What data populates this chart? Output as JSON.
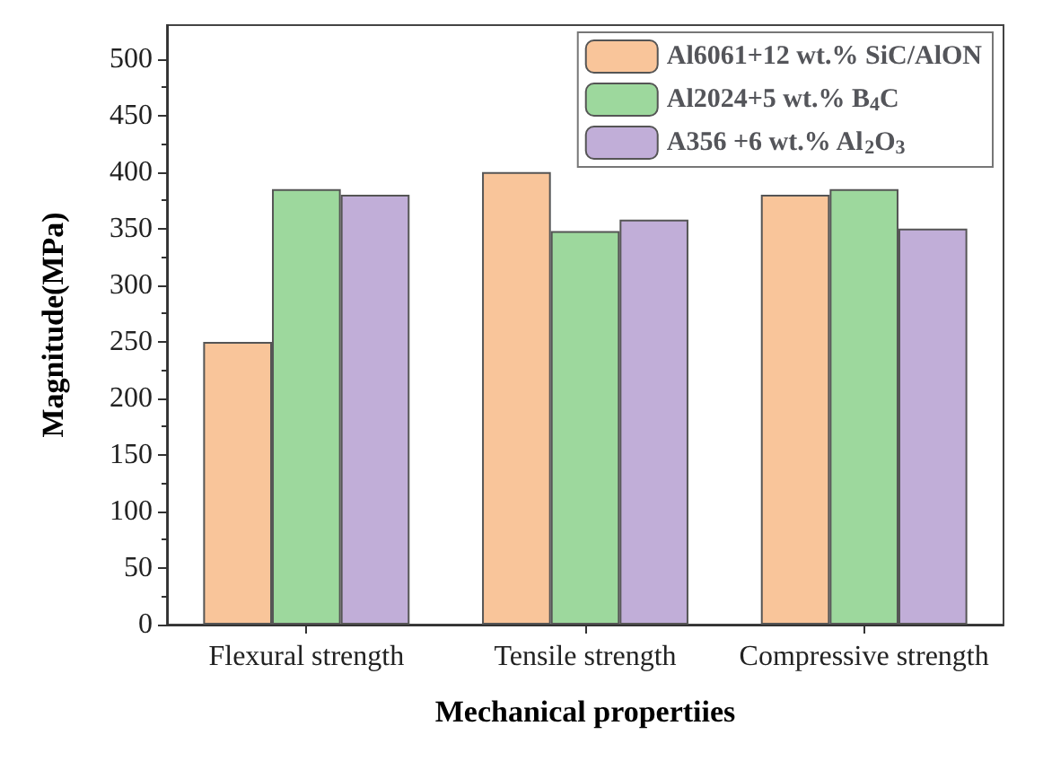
{
  "chart_data": {
    "type": "bar",
    "xlabel": "Mechanical propertiies",
    "ylabel": "Magnitude(MPa)",
    "categories": [
      "Flexural strength",
      "Tensile strength",
      "Compressive strength"
    ],
    "series": [
      {
        "name": "Al6061+12 wt.% SiC/AlON",
        "color": "#f9c59a",
        "values": [
          250,
          400,
          380
        ]
      },
      {
        "name": "Al2024+5 wt.% B$_{4}$C",
        "color": "#9dd89d",
        "values": [
          385,
          348,
          385
        ]
      },
      {
        "name": "A356 +6 wt.% Al$_{2}$O$_{3}$",
        "color": "#c1aed8",
        "values": [
          380,
          358,
          350
        ]
      }
    ],
    "ylim": [
      0,
      530
    ],
    "yticks": [
      0,
      50,
      100,
      150,
      200,
      250,
      300,
      350,
      400,
      450,
      500
    ],
    "grid": false,
    "legend": "top right"
  }
}
